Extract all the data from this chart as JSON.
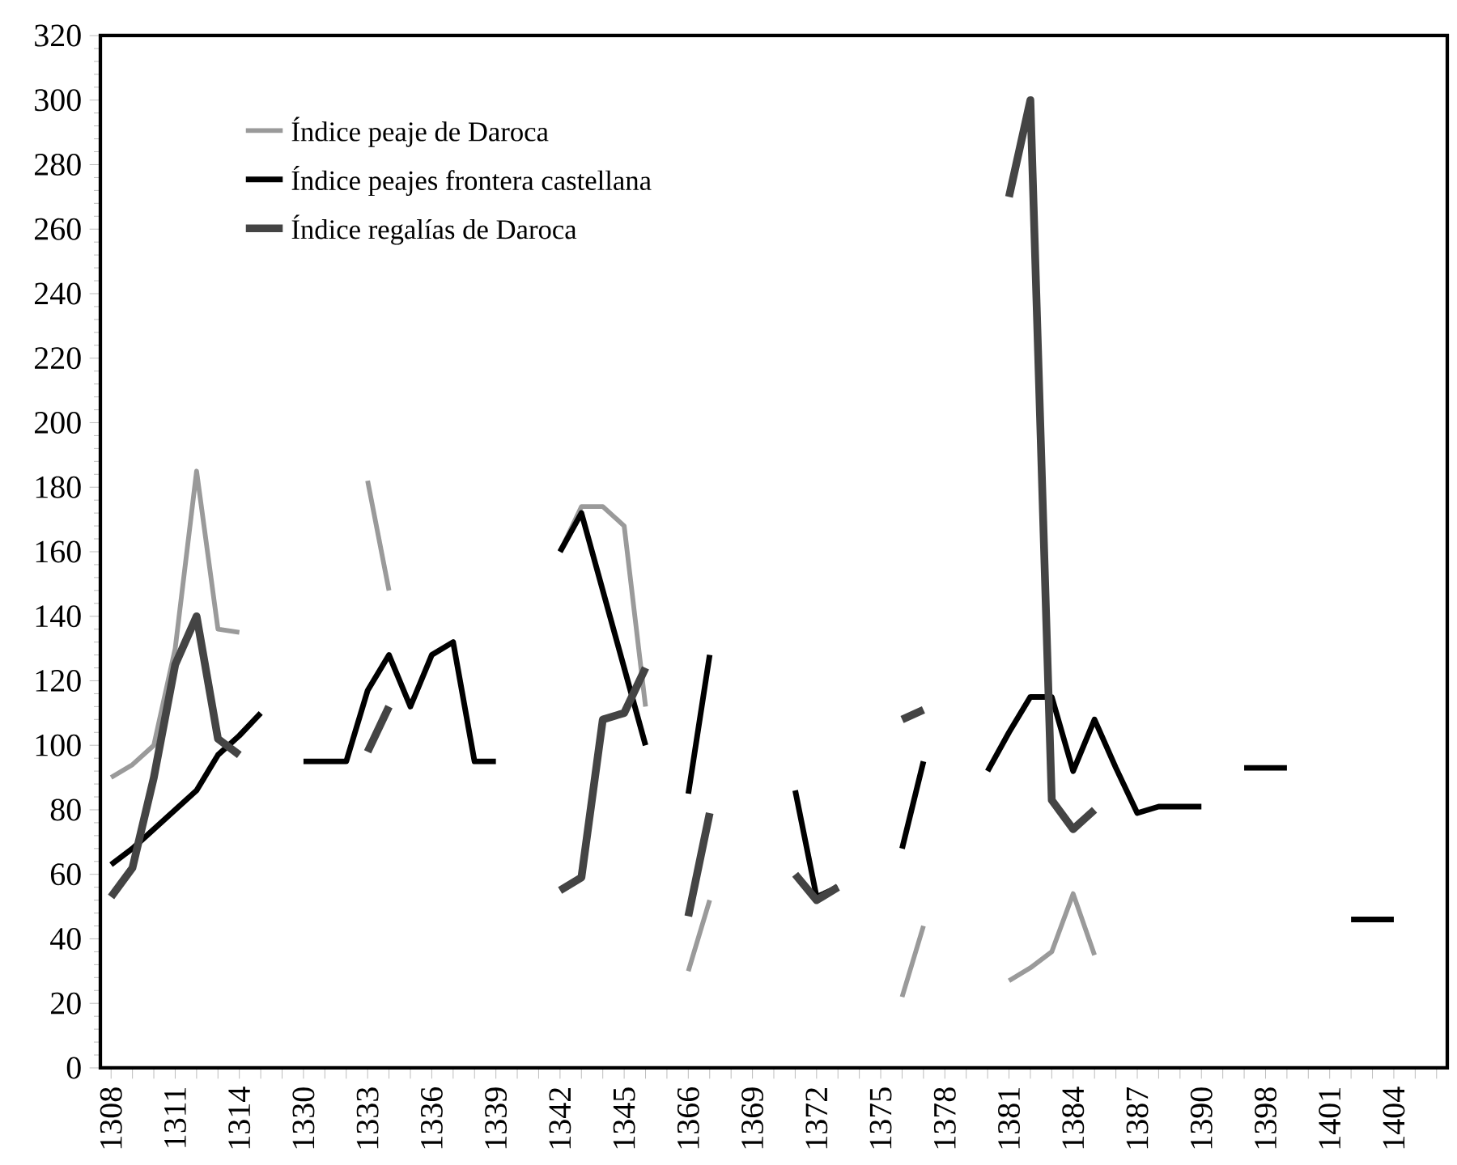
{
  "chart_data": {
    "type": "line",
    "categories": [
      "1308",
      null,
      null,
      "1311",
      null,
      null,
      "1314",
      null,
      null,
      "1330",
      null,
      null,
      "1333",
      null,
      null,
      "1336",
      null,
      null,
      "1339",
      null,
      null,
      "1342",
      null,
      null,
      "1345",
      null,
      null,
      "1366",
      null,
      null,
      "1369",
      null,
      null,
      "1372",
      null,
      null,
      "1375",
      null,
      null,
      "1378",
      null,
      null,
      "1381",
      null,
      null,
      "1384",
      null,
      null,
      "1387",
      null,
      null,
      "1390",
      null,
      null,
      "1398",
      null,
      null,
      "1401",
      null,
      null,
      "1404",
      null,
      null
    ],
    "series": [
      {
        "name": "Índice peaje de Daroca",
        "color": "#9a9a9a",
        "values": [
          90,
          94,
          100,
          130,
          185,
          136,
          135,
          null,
          null,
          null,
          null,
          null,
          182,
          148,
          null,
          null,
          null,
          null,
          null,
          null,
          null,
          160,
          174,
          174,
          168,
          112,
          null,
          30,
          52,
          null,
          null,
          null,
          null,
          null,
          null,
          null,
          null,
          22,
          44,
          null,
          null,
          null,
          27,
          31,
          36,
          54,
          35,
          null,
          null,
          null,
          null,
          null,
          null,
          null,
          null,
          null,
          null,
          null,
          null,
          null,
          null,
          null,
          null
        ]
      },
      {
        "name": "Índice peajes frontera castellana",
        "color": "#000000",
        "values": [
          63,
          68,
          74,
          80,
          86,
          97,
          103,
          110,
          null,
          95,
          95,
          95,
          117,
          128,
          112,
          128,
          132,
          95,
          95,
          null,
          null,
          160,
          172,
          148,
          124,
          100,
          null,
          85,
          128,
          null,
          null,
          null,
          86,
          53,
          56,
          null,
          null,
          68,
          95,
          null,
          null,
          92,
          104,
          115,
          115,
          92,
          108,
          93,
          79,
          81,
          81,
          81,
          null,
          93,
          93,
          93,
          null,
          null,
          46,
          46,
          46,
          null,
          null
        ]
      },
      {
        "name": "Índice regalías de Daroca",
        "color": "#444444",
        "values": [
          53,
          62,
          90,
          125,
          140,
          102,
          97,
          null,
          null,
          null,
          null,
          null,
          98,
          112,
          null,
          null,
          null,
          null,
          null,
          null,
          null,
          55,
          59,
          108,
          110,
          124,
          null,
          47,
          79,
          null,
          null,
          null,
          60,
          52,
          56,
          null,
          null,
          108,
          111,
          null,
          null,
          null,
          270,
          300,
          83,
          74,
          80,
          null,
          null,
          null,
          null,
          null,
          null,
          null,
          null,
          null,
          null,
          null,
          null,
          null,
          null,
          null,
          null
        ]
      }
    ],
    "ylim": [
      0,
      320
    ],
    "yticks": [
      0,
      20,
      40,
      60,
      80,
      100,
      120,
      140,
      160,
      180,
      200,
      220,
      240,
      260,
      280,
      300,
      320
    ],
    "grid": false,
    "legend": "top left",
    "marker": "none",
    "line_style": "solid"
  }
}
